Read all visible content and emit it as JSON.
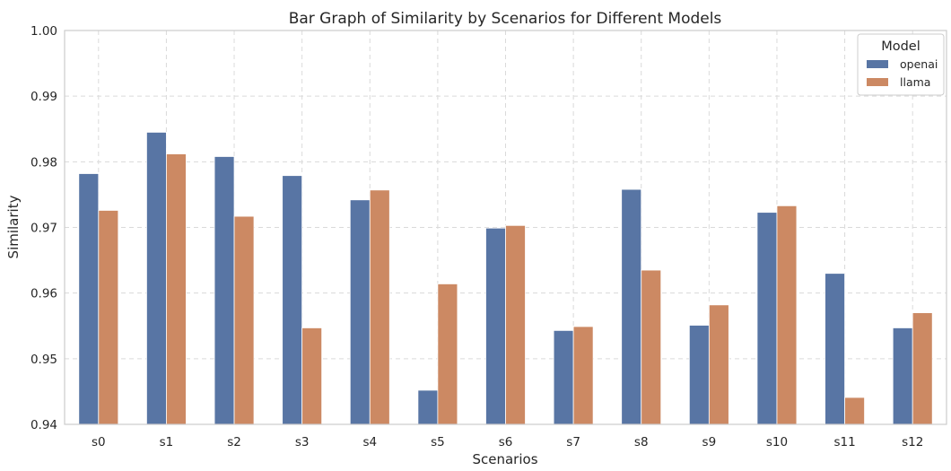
{
  "chart_data": {
    "type": "bar",
    "title": "Bar Graph of Similarity by Scenarios for Different Models",
    "xlabel": "Scenarios",
    "ylabel": "Similarity",
    "ylim": [
      0.94,
      1.0
    ],
    "yticks": [
      0.94,
      0.95,
      0.96,
      0.97,
      0.98,
      0.99,
      1.0
    ],
    "ytick_labels": [
      "0.94",
      "0.95",
      "0.96",
      "0.97",
      "0.98",
      "0.99",
      "1.00"
    ],
    "grid": true,
    "legend": {
      "title": "Model",
      "placement": "top-right"
    },
    "categories": [
      "s0",
      "s1",
      "s2",
      "s3",
      "s4",
      "s5",
      "s6",
      "s7",
      "s8",
      "s9",
      "s10",
      "s11",
      "s12"
    ],
    "series": [
      {
        "name": "openai",
        "color": "#5875a4",
        "values": [
          0.9782,
          0.9845,
          0.9808,
          0.9779,
          0.9742,
          0.9452,
          0.9699,
          0.9543,
          0.9758,
          0.9551,
          0.9723,
          0.963,
          0.9547
        ]
      },
      {
        "name": "llama",
        "color": "#cc8963",
        "values": [
          0.9726,
          0.9812,
          0.9717,
          0.9547,
          0.9757,
          0.9614,
          0.9703,
          0.9549,
          0.9635,
          0.9582,
          0.9733,
          0.9441,
          0.957
        ]
      }
    ]
  }
}
